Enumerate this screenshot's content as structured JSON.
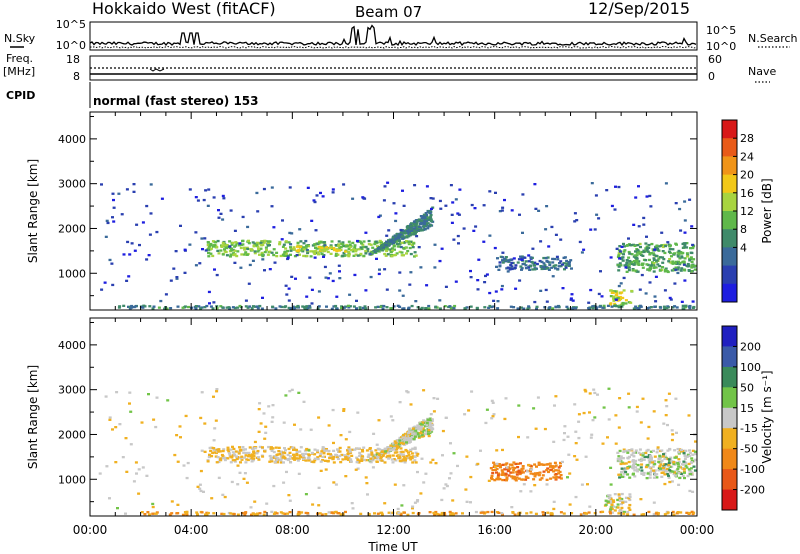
{
  "header": {
    "station": "Hokkaido West (fitACF)",
    "beam": "Beam 07",
    "date": "12/Sep/2015"
  },
  "top_panel": {
    "nsky_label": "N.Sky",
    "nsearch_label": "N.Search",
    "left_ticks": [
      "10^5",
      "10^0"
    ],
    "right_ticks": [
      "10^5",
      "10^0"
    ],
    "freq_label_1": "Freq.",
    "freq_label_2": "[MHz]",
    "freq_ticks": [
      "18",
      "8"
    ],
    "nave_label": "Nave",
    "nave_ticks": [
      "60",
      "0"
    ],
    "cpid_label": "CPID",
    "cpid_text": "normal (fast stereo) 153"
  },
  "colors": {
    "power": [
      "#1e1ee0",
      "#2a3fb0",
      "#3a6a9a",
      "#3f8a6a",
      "#5fb84a",
      "#a8d440",
      "#f2c818",
      "#f09418",
      "#e85a18",
      "#d81818"
    ],
    "velocity": [
      "#2020c0",
      "#3a5aa8",
      "#3a8a5a",
      "#72c448",
      "#c8c8c8",
      "#f0b020",
      "#f08818",
      "#e85818",
      "#d81818"
    ]
  },
  "chart_data": [
    {
      "type": "heatmap",
      "name": "power",
      "ylabel": "Slant Range [km]",
      "xlabel": "Time UT",
      "x_ticks": [
        "00:00",
        "04:00",
        "08:00",
        "12:00",
        "16:00",
        "20:00",
        "00:00"
      ],
      "y_ticks": [
        1000,
        2000,
        3000,
        4000
      ],
      "xlim_hours": [
        0,
        24
      ],
      "ylim": [
        180,
        4600
      ],
      "colorbar_label": "Power [dB]",
      "colorbar_ticks": [
        "28",
        "24",
        "20",
        "16",
        "12",
        "8",
        "4"
      ],
      "regions": [
        {
          "t0": 4.6,
          "t1": 12.9,
          "r0": 1400,
          "r1": 1750,
          "level": 0.45
        },
        {
          "t0": 8.0,
          "t1": 10.5,
          "r0": 1500,
          "r1": 1620,
          "level": 0.6
        },
        {
          "t0": 11.0,
          "t1": 13.5,
          "r0": 1450,
          "r1": 2500,
          "level": 0.3
        },
        {
          "t0": 16.0,
          "t1": 19.0,
          "r0": 1100,
          "r1": 1400,
          "level": 0.25
        },
        {
          "t0": 20.8,
          "t1": 24.0,
          "r0": 1050,
          "r1": 1700,
          "level": 0.4
        },
        {
          "t0": 20.5,
          "t1": 21.4,
          "r0": 300,
          "r1": 650,
          "level": 0.55
        },
        {
          "t0": 1.0,
          "t1": 24.0,
          "r0": 200,
          "r1": 300,
          "level": 0.3
        },
        {
          "t0": 0.3,
          "t1": 24.0,
          "r0": 350,
          "r1": 3050,
          "level": 0.1
        }
      ]
    },
    {
      "type": "heatmap",
      "name": "velocity",
      "ylabel": "Slant Range [km]",
      "xlabel": "Time UT",
      "x_ticks": [
        "00:00",
        "04:00",
        "08:00",
        "12:00",
        "16:00",
        "20:00",
        "00:00"
      ],
      "y_ticks": [
        1000,
        2000,
        3000,
        4000
      ],
      "xlim_hours": [
        0,
        24
      ],
      "ylim": [
        180,
        4600
      ],
      "colorbar_label": "Velocity [m s⁻¹]",
      "colorbar_ticks": [
        "200",
        "100",
        "50",
        "15",
        "-15",
        "-50",
        "-100",
        "-200"
      ],
      "regions": [
        {
          "t0": 4.6,
          "t1": 12.9,
          "r0": 1400,
          "r1": 1750,
          "level": -20
        },
        {
          "t0": 11.0,
          "t1": 13.5,
          "r0": 1450,
          "r1": 2500,
          "level": 0
        },
        {
          "t0": 15.8,
          "t1": 18.6,
          "r0": 1000,
          "r1": 1400,
          "level": -80
        },
        {
          "t0": 20.8,
          "t1": 24.0,
          "r0": 1050,
          "r1": 1700,
          "level": 5
        },
        {
          "t0": 20.3,
          "t1": 21.3,
          "r0": 280,
          "r1": 700,
          "level": -5
        },
        {
          "t0": 1.0,
          "t1": 24.0,
          "r0": 200,
          "r1": 300,
          "level": -40
        },
        {
          "t0": 0.3,
          "t1": 24.0,
          "r0": 350,
          "r1": 3050,
          "level": -10
        }
      ]
    }
  ]
}
